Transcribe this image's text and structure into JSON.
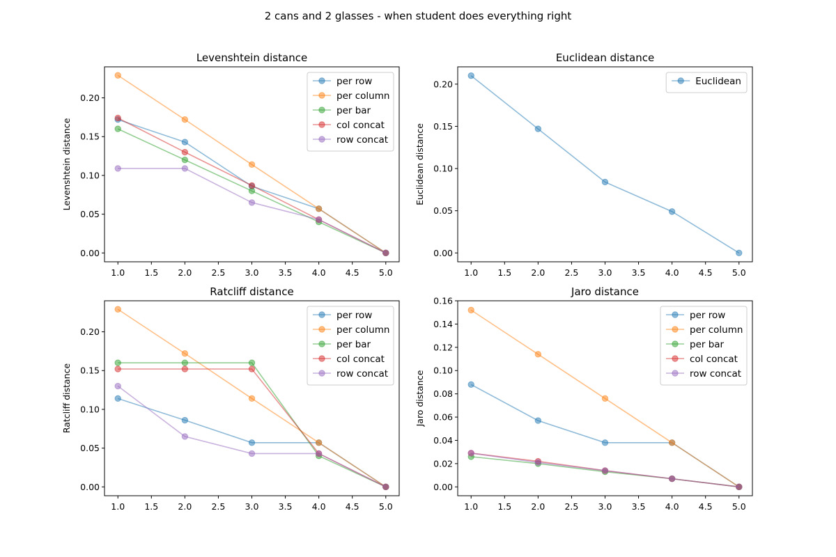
{
  "figure_title": "2 cans and 2 glasses - when student does everything right",
  "colors": {
    "per row": "#1f77b4",
    "per column": "#ff7f0e",
    "per bar": "#2ca02c",
    "col concat": "#d62728",
    "row concat": "#9467bd",
    "Euclidean": "#1f77b4"
  },
  "chart_data": [
    {
      "type": "line",
      "title": "Levenshtein distance",
      "xlabel": "",
      "ylabel": "Levenshtein distance",
      "x": [
        1.0,
        2.0,
        3.0,
        4.0,
        5.0
      ],
      "xlim": [
        0.8,
        5.2
      ],
      "ylim": [
        -0.0114,
        0.24
      ],
      "xticks": [
        "1.0",
        "1.5",
        "2.0",
        "2.5",
        "3.0",
        "3.5",
        "4.0",
        "4.5",
        "5.0"
      ],
      "yticks": [
        "0.00",
        "0.05",
        "0.10",
        "0.15",
        "0.20"
      ],
      "legend": "upper right",
      "series": [
        {
          "name": "per row",
          "values": [
            0.172,
            0.143,
            0.086,
            0.057,
            0.0
          ]
        },
        {
          "name": "per column",
          "values": [
            0.229,
            0.172,
            0.114,
            0.057,
            0.0
          ]
        },
        {
          "name": "per bar",
          "values": [
            0.16,
            0.12,
            0.08,
            0.04,
            0.0
          ]
        },
        {
          "name": "col concat",
          "values": [
            0.174,
            0.13,
            0.087,
            0.043,
            0.0
          ]
        },
        {
          "name": "row concat",
          "values": [
            0.109,
            0.109,
            0.065,
            0.043,
            0.0
          ]
        }
      ]
    },
    {
      "type": "line",
      "title": "Euclidean distance",
      "xlabel": "",
      "ylabel": "Euclidean distance",
      "x": [
        1.0,
        2.0,
        3.0,
        4.0,
        5.0
      ],
      "xlim": [
        0.8,
        5.2
      ],
      "ylim": [
        -0.0105,
        0.2205
      ],
      "xticks": [
        "1.0",
        "1.5",
        "2.0",
        "2.5",
        "3.0",
        "3.5",
        "4.0",
        "4.5",
        "5.0"
      ],
      "yticks": [
        "0.00",
        "0.05",
        "0.10",
        "0.15",
        "0.20"
      ],
      "legend": "upper right",
      "series": [
        {
          "name": "Euclidean",
          "values": [
            0.21,
            0.147,
            0.084,
            0.049,
            0.0
          ]
        }
      ]
    },
    {
      "type": "line",
      "title": "Ratcliff distance",
      "xlabel": "",
      "ylabel": "Ratcliff distance",
      "x": [
        1.0,
        2.0,
        3.0,
        4.0,
        5.0
      ],
      "xlim": [
        0.8,
        5.2
      ],
      "ylim": [
        -0.0114,
        0.24
      ],
      "xticks": [
        "1.0",
        "1.5",
        "2.0",
        "2.5",
        "3.0",
        "3.5",
        "4.0",
        "4.5",
        "5.0"
      ],
      "yticks": [
        "0.00",
        "0.05",
        "0.10",
        "0.15",
        "0.20"
      ],
      "legend": "upper right",
      "series": [
        {
          "name": "per row",
          "values": [
            0.114,
            0.086,
            0.057,
            0.057,
            0.0
          ]
        },
        {
          "name": "per column",
          "values": [
            0.229,
            0.172,
            0.114,
            0.057,
            0.0
          ]
        },
        {
          "name": "per bar",
          "values": [
            0.16,
            0.16,
            0.16,
            0.04,
            0.0
          ]
        },
        {
          "name": "col concat",
          "values": [
            0.152,
            0.152,
            0.152,
            0.043,
            0.0
          ]
        },
        {
          "name": "row concat",
          "values": [
            0.13,
            0.065,
            0.043,
            0.043,
            0.0
          ]
        }
      ]
    },
    {
      "type": "line",
      "title": "Jaro distance",
      "xlabel": "",
      "ylabel": "Jaro distance",
      "x": [
        1.0,
        2.0,
        3.0,
        4.0,
        5.0
      ],
      "xlim": [
        0.8,
        5.2
      ],
      "ylim": [
        -0.0076,
        0.16
      ],
      "xticks": [
        "1.0",
        "1.5",
        "2.0",
        "2.5",
        "3.0",
        "3.5",
        "4.0",
        "4.5",
        "5.0"
      ],
      "yticks": [
        "0.00",
        "0.02",
        "0.04",
        "0.06",
        "0.08",
        "0.10",
        "0.12",
        "0.14",
        "0.16"
      ],
      "legend": "upper right",
      "series": [
        {
          "name": "per row",
          "values": [
            0.088,
            0.057,
            0.038,
            0.038,
            0.0
          ]
        },
        {
          "name": "per column",
          "values": [
            0.152,
            0.114,
            0.076,
            0.038,
            0.0
          ]
        },
        {
          "name": "per bar",
          "values": [
            0.026,
            0.02,
            0.013,
            0.007,
            0.0
          ]
        },
        {
          "name": "col concat",
          "values": [
            0.029,
            0.022,
            0.014,
            0.007,
            0.0
          ]
        },
        {
          "name": "row concat",
          "values": [
            0.029,
            0.021,
            0.014,
            0.007,
            0.0
          ]
        }
      ]
    }
  ]
}
